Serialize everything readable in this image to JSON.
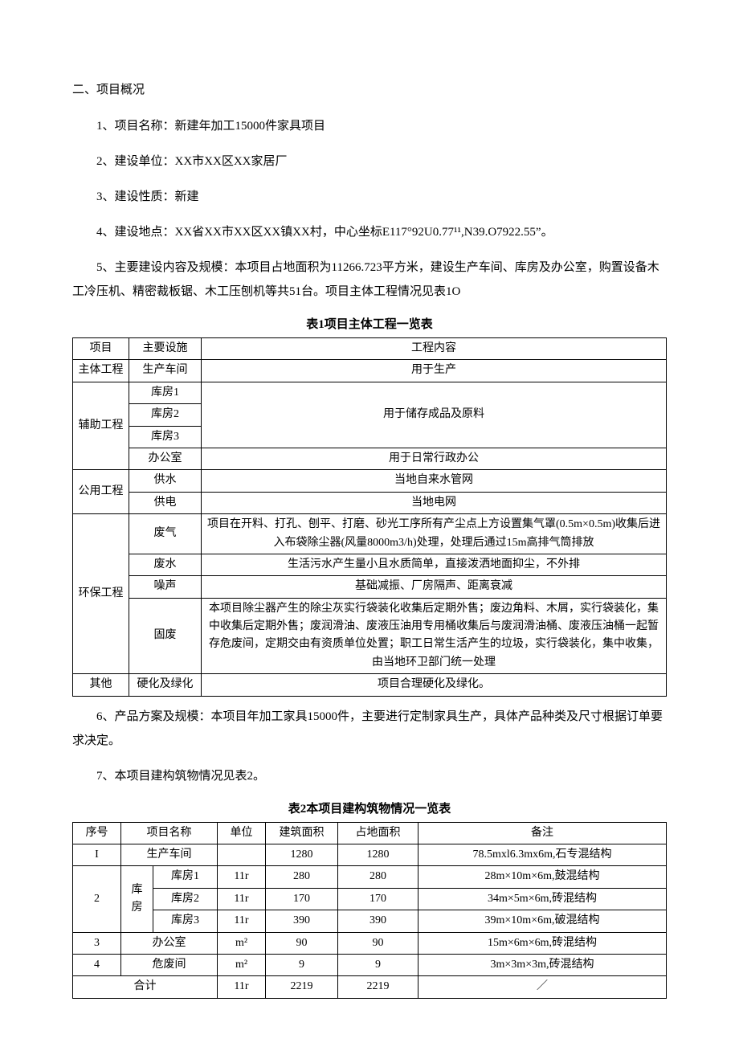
{
  "heading": "二、项目概况",
  "paras": {
    "p1": "1、项目名称：新建年加工15000件家具项目",
    "p2": "2、建设单位：XX市XX区XX家居厂",
    "p3": "3、建设性质：新建",
    "p4": "4、建设地点：XX省XX市XX区XX镇XX村，中心坐标E117°92U0.77¹¹,N39.O7922.55”。",
    "p5": "5、主要建设内容及规模：本项目占地面积为11266.723平方米，建设生产车间、库房及办公室，购置设备木工冷压机、精密裁板锯、木工压刨机等共51台。项目主体工程情况见表1O",
    "p6": "6、产品方案及规模：本项目年加工家具15000件，主要进行定制家具生产，具体产品种类及尺寸根据订单要求决定。",
    "p7": "7、本项目建构筑物情况见表2。"
  },
  "table1": {
    "caption": "表1项目主体工程一览表",
    "head": [
      "项目",
      "主要设施",
      "工程内容"
    ],
    "rows": [
      {
        "c1": "主体工程",
        "c2": "生产车间",
        "c3": "用于生产"
      },
      {
        "c1": "辅助工程",
        "c1_rowspan": 4,
        "c2": "库房1",
        "c3": "用于储存成品及原料",
        "c3_rowspan": 3
      },
      {
        "c2": "库房2"
      },
      {
        "c2": "库房3"
      },
      {
        "c2": "办公室",
        "c3": "用于日常行政办公"
      },
      {
        "c1": "公用工程",
        "c1_rowspan": 2,
        "c2": "供水",
        "c3": "当地自来水管网"
      },
      {
        "c2": "供电",
        "c3": "当地电网"
      },
      {
        "c1": "环保工程",
        "c1_rowspan": 4,
        "c2": "废气",
        "c3": "项目在开料、打孔、刨平、打磨、砂光工序所有产尘点上方设置集气罩(0.5m×0.5m)收集后进入布袋除尘器(风量8000m3/h)处理，处理后通过15m高排气筒排放"
      },
      {
        "c2": "废水",
        "c3": "生活污水产生量小且水质简单，直接泼洒地面抑尘，不外排"
      },
      {
        "c2": "噪声",
        "c3": "基础减振、厂房隔声、距离衰减"
      },
      {
        "c2": "固废",
        "c3": "本项目除尘器产生的除尘灰实行袋装化收集后定期外售；废边角料、木屑，实行袋装化，集中收集后定期外售；废润滑油、废液压油用专用桶收集后与废润滑油桶、废液压油桶一起暂存危废间，定期交由有资质单位处置；职工日常生活产生的垃圾，实行袋装化，集中收集，由当地环卫部门统一处理"
      },
      {
        "c1": "其他",
        "c2": "硬化及绿化",
        "c3": "项目合理硬化及绿化。"
      }
    ]
  },
  "table2": {
    "caption": "表2本项目建构筑物情况一览表",
    "head": [
      "序号",
      "项目名称",
      "单位",
      "建筑面积",
      "占地面积",
      "备注"
    ],
    "rows": [
      {
        "c1": "I",
        "c2": "生产车间",
        "c2_colspan": 2,
        "c3": "",
        "c4": "1280",
        "c5": "1280",
        "c6": "78.5mxl6.3mx6m,石专混结构"
      },
      {
        "c1": "2",
        "c1_rowspan": 3,
        "c2a": "库房",
        "c2a_rowspan": 3,
        "c2b": "库房1",
        "c3": "11r",
        "c4": "280",
        "c5": "280",
        "c6": "28m×10m×6m,鼓混结构"
      },
      {
        "c2b": "库房2",
        "c3": "11r",
        "c4": "170",
        "c5": "170",
        "c6": "34m×5m×6m,砖混结构"
      },
      {
        "c2b": "库房3",
        "c3": "11r",
        "c4": "390",
        "c5": "390",
        "c6": "39m×10m×6m,破混结构"
      },
      {
        "c1": "3",
        "c2": "办公室",
        "c2_colspan": 2,
        "c3": "m²",
        "c4": "90",
        "c5": "90",
        "c6": "15m×6m×6m,砖混结构"
      },
      {
        "c1": "4",
        "c2": "危废间",
        "c2_colspan": 2,
        "c3": "m²",
        "c4": "9",
        "c5": "9",
        "c6": "3m×3m×3m,砖混结构"
      },
      {
        "c1": "合计",
        "c1_colspan": 3,
        "c3": "11r",
        "c4": "2219",
        "c5": "2219",
        "c6": "／"
      }
    ]
  }
}
